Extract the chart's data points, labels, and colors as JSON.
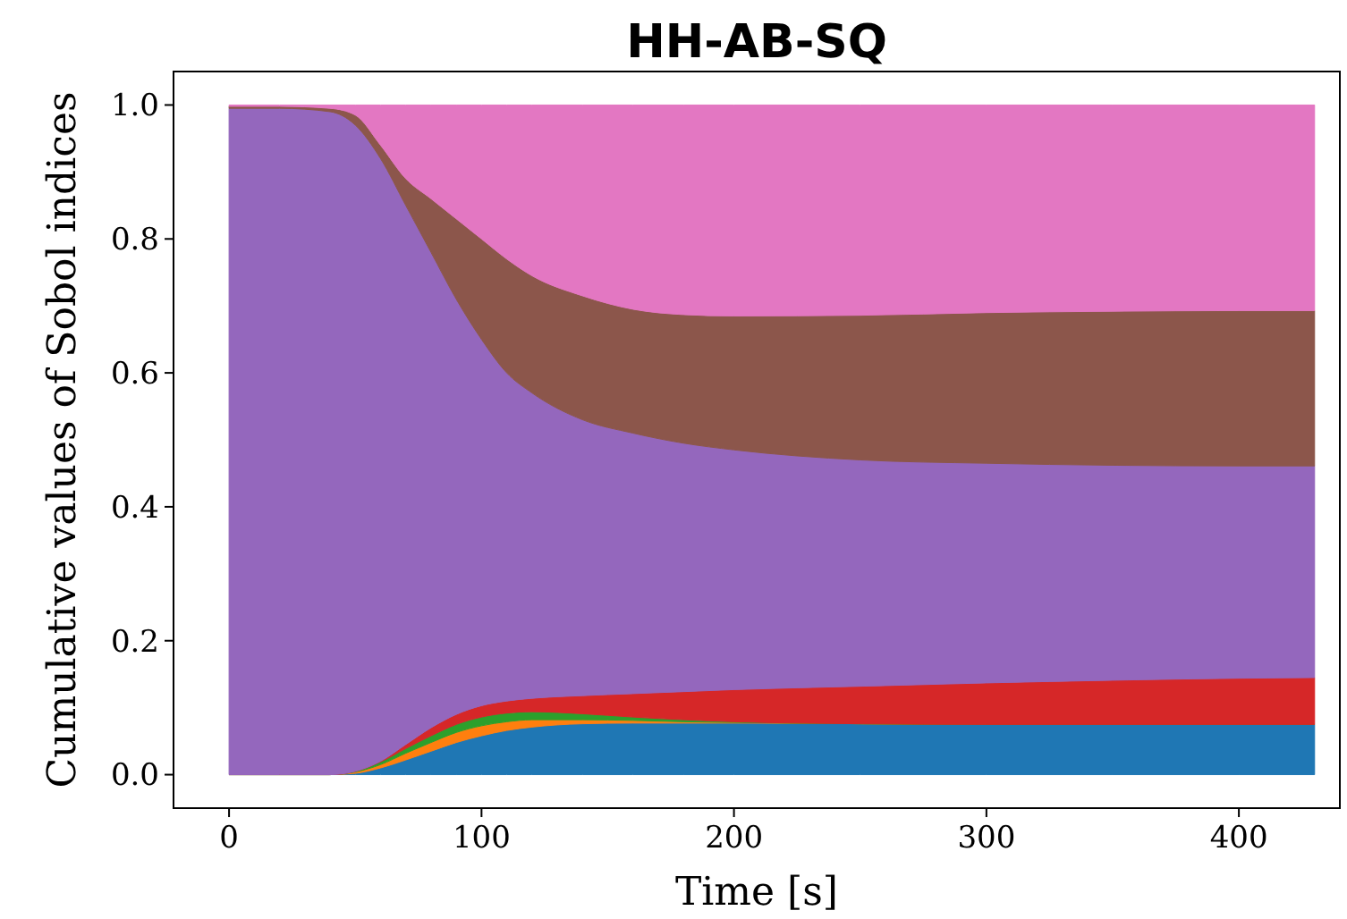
{
  "chart_data": {
    "type": "area",
    "stacked": true,
    "title": "HH-AB-SQ",
    "xlabel": "Time [s]",
    "ylabel": "Cumulative values of Sobol indices",
    "x": [
      0,
      20,
      40,
      50,
      60,
      70,
      80,
      90,
      100,
      110,
      120,
      140,
      160,
      180,
      200,
      250,
      300,
      350,
      400,
      430
    ],
    "xlim": [
      -22,
      440
    ],
    "xticks": [
      0,
      100,
      200,
      300,
      400
    ],
    "ylim": [
      -0.05,
      1.05
    ],
    "yticks": [
      {
        "value": 0,
        "label": "0.0"
      },
      {
        "value": 0.2,
        "label": "0.2"
      },
      {
        "value": 0.4,
        "label": "0.4"
      },
      {
        "value": 0.6,
        "label": "0.6"
      },
      {
        "value": 0.8,
        "label": "0.8"
      },
      {
        "value": 1,
        "label": "1.0"
      }
    ],
    "grid": false,
    "series": [
      {
        "color": "#1f77b4",
        "values": [
          0,
          0,
          0,
          0.002,
          0.01,
          0.022,
          0.035,
          0.048,
          0.058,
          0.066,
          0.071,
          0.076,
          0.077,
          0.077,
          0.077,
          0.076,
          0.075,
          0.075,
          0.075,
          0.075
        ]
      },
      {
        "color": "#ff7f0e",
        "values": [
          0,
          0,
          0,
          0.002,
          0.005,
          0.01,
          0.013,
          0.015,
          0.015,
          0.013,
          0.011,
          0.006,
          0.004,
          0.002,
          0.001,
          0,
          0,
          0,
          0,
          0
        ]
      },
      {
        "color": "#2ca02c",
        "values": [
          0,
          0,
          0,
          0.001,
          0.004,
          0.007,
          0.01,
          0.012,
          0.013,
          0.013,
          0.012,
          0.009,
          0.005,
          0.003,
          0.001,
          0,
          0,
          0,
          0,
          0
        ]
      },
      {
        "color": "#d62728",
        "values": [
          0,
          0,
          0,
          0,
          0.001,
          0.006,
          0.012,
          0.015,
          0.017,
          0.018,
          0.02,
          0.027,
          0.035,
          0.042,
          0.048,
          0.056,
          0.062,
          0.066,
          0.069,
          0.07
        ]
      },
      {
        "color": "#9467bd",
        "values": [
          0.995,
          0.995,
          0.99,
          0.965,
          0.9,
          0.805,
          0.71,
          0.62,
          0.547,
          0.49,
          0.456,
          0.412,
          0.389,
          0.371,
          0.358,
          0.338,
          0.328,
          0.321,
          0.317,
          0.316
        ]
      },
      {
        "color": "#8c564b",
        "values": [
          0.003,
          0.003,
          0.005,
          0.015,
          0.02,
          0.04,
          0.08,
          0.12,
          0.15,
          0.17,
          0.175,
          0.185,
          0.185,
          0.192,
          0.2,
          0.216,
          0.225,
          0.23,
          0.232,
          0.232
        ]
      },
      {
        "color": "#e377c2",
        "values": [
          0.002,
          0.002,
          0.005,
          0.015,
          0.06,
          0.11,
          0.14,
          0.17,
          0.2,
          0.23,
          0.255,
          0.285,
          0.305,
          0.313,
          0.315,
          0.314,
          0.31,
          0.308,
          0.307,
          0.307
        ]
      }
    ]
  }
}
